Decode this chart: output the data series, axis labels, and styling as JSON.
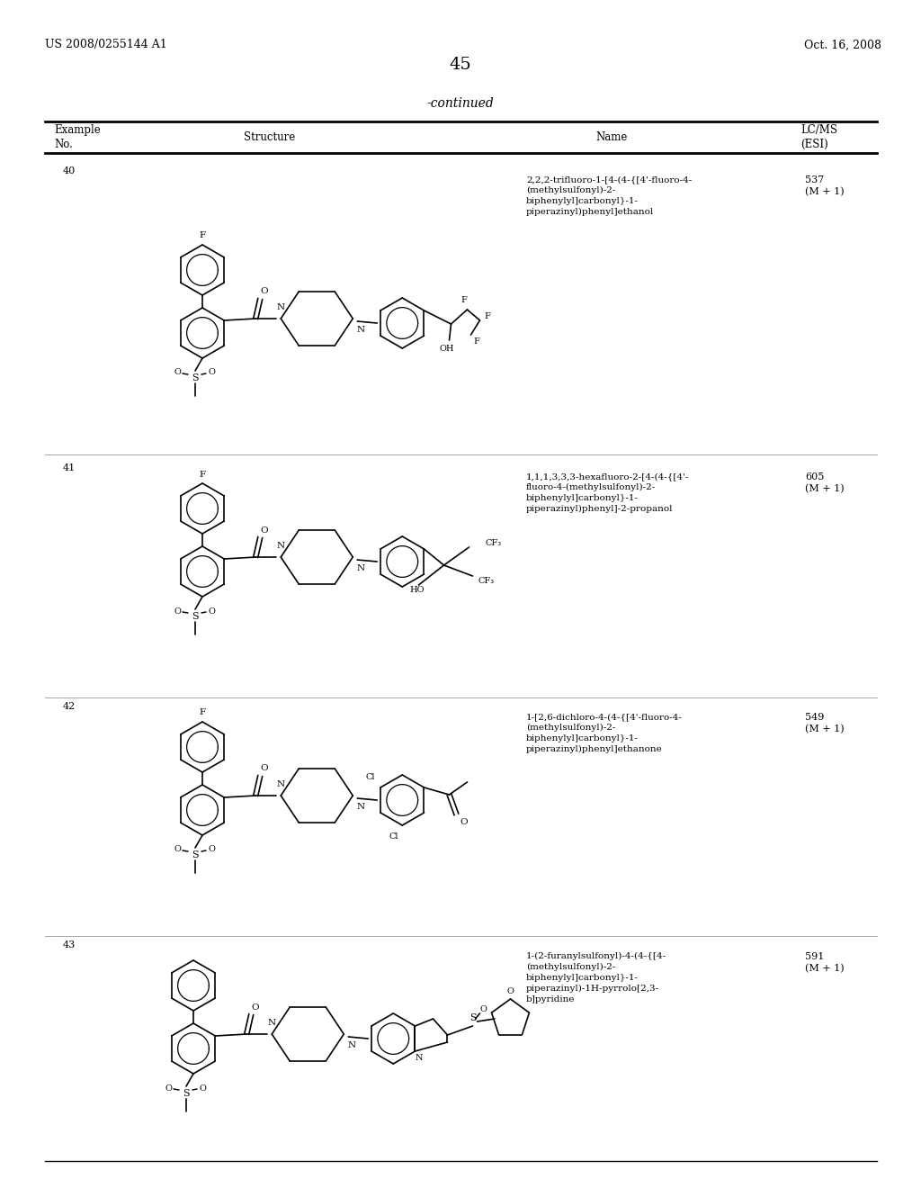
{
  "page_header_left": "US 2008/0255144 A1",
  "page_header_right": "Oct. 16, 2008",
  "page_number": "45",
  "table_title": "-continued",
  "background_color": "#ffffff",
  "text_color": "#000000",
  "line_color": "#000000",
  "font_size_header": 8.5,
  "font_size_body": 8,
  "font_size_page": 9,
  "font_size_title": 10,
  "font_size_number": 14,
  "rows": [
    {
      "example": "40",
      "name": "2,2,2-trifluoro-1-[4-(4-{[4'-fluoro-4-\n(methylsulfonyl)-2-\nbiphenylyl]carbonyl}-1-\npiperazinyl)phenyl]ethanol",
      "lcms": "537\n(M + 1)"
    },
    {
      "example": "41",
      "name": "1,1,1,3,3,3-hexafluoro-2-[4-(4-{[4'-\nfluoro-4-(methylsulfonyl)-2-\nbiphenylyl]carbonyl}-1-\npiperazinyl)phenyl]-2-propanol",
      "lcms": "605\n(M + 1)"
    },
    {
      "example": "42",
      "name": "1-[2,6-dichloro-4-(4-{[4'-fluoro-4-\n(methylsulfonyl)-2-\nbiphenylyl]carbonyl}-1-\npiperazinyl)phenyl]ethanone",
      "lcms": "549\n(M + 1)"
    },
    {
      "example": "43",
      "name": "1-(2-furanylsulfonyl)-4-(4-{[4-\n(methylsulfonyl)-2-\nbiphenylyl]carbonyl}-1-\npiperazinyl)-1H-pyrrolo[2,3-\nb]pyridine",
      "lcms": "591\n(M + 1)"
    }
  ]
}
